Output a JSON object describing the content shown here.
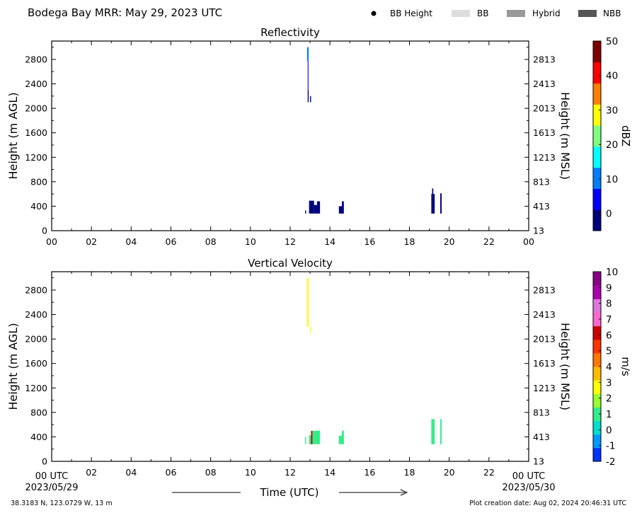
{
  "header": {
    "title": "Bodega Bay MRR:  May 29, 2023 UTC",
    "legend": [
      {
        "label": "BB Height",
        "kind": "dot",
        "color": "#000000"
      },
      {
        "label": "BB",
        "kind": "rect",
        "color": "#dddddd"
      },
      {
        "label": "Hybrid",
        "kind": "rect",
        "color": "#999999"
      },
      {
        "label": "NBB",
        "kind": "rect",
        "color": "#555555"
      }
    ]
  },
  "footer": {
    "location": "38.3183 N, 123.0729 W, 13 m",
    "plot_creation": "Plot creation date: Aug 02, 2024 20:46:31 UTC",
    "xlabel": "Time (UTC)",
    "start_label": "00 UTC",
    "start_date": "2023/05/29",
    "end_label": "00 UTC",
    "end_date": "2023/05/30"
  },
  "chart_data": [
    {
      "type": "heatmap",
      "title": "Reflectivity",
      "ylabel": "Height (m AGL)",
      "ylabel_right": "Height (m MSL)",
      "x_ticks": [
        "00",
        "02",
        "04",
        "06",
        "08",
        "10",
        "12",
        "14",
        "16",
        "18",
        "20",
        "22",
        "00"
      ],
      "xlim": [
        0,
        24
      ],
      "ylim": [
        0,
        3100
      ],
      "y_ticks_left": [
        0,
        400,
        800,
        1200,
        1600,
        2000,
        2400,
        2800
      ],
      "y_ticks_right": [
        13,
        413,
        813,
        1213,
        1613,
        2013,
        2413,
        2813
      ],
      "colorbar": {
        "label": "dBZ",
        "min": -5,
        "max": 50,
        "ticks": [
          0,
          10,
          20,
          30,
          40,
          50
        ],
        "colors": [
          "#00007f",
          "#0000ff",
          "#007fff",
          "#00ffff",
          "#7fff7f",
          "#ffff00",
          "#ff7f00",
          "#ff0000",
          "#7f0000"
        ]
      },
      "cells": [
        {
          "t0": 12.75,
          "t1": 12.8,
          "h0": 280,
          "h1": 330,
          "v": -2
        },
        {
          "t0": 12.85,
          "t1": 12.93,
          "h0": 2770,
          "h1": 3000,
          "v": 8
        },
        {
          "t0": 12.88,
          "t1": 12.92,
          "h0": 2300,
          "h1": 2770,
          "v": 4
        },
        {
          "t0": 12.88,
          "t1": 12.93,
          "h0": 2100,
          "h1": 2300,
          "v": -3
        },
        {
          "t0": 13.0,
          "t1": 13.05,
          "h0": 2100,
          "h1": 2200,
          "v": -2
        },
        {
          "t0": 12.95,
          "t1": 13.2,
          "h0": 280,
          "h1": 490,
          "v": -2
        },
        {
          "t0": 13.2,
          "t1": 13.35,
          "h0": 280,
          "h1": 420,
          "v": -2
        },
        {
          "t0": 13.35,
          "t1": 13.5,
          "h0": 280,
          "h1": 480,
          "v": -1
        },
        {
          "t0": 14.45,
          "t1": 14.65,
          "h0": 280,
          "h1": 400,
          "v": -2
        },
        {
          "t0": 14.6,
          "t1": 14.7,
          "h0": 280,
          "h1": 480,
          "v": -1
        },
        {
          "t0": 19.1,
          "t1": 19.27,
          "h0": 280,
          "h1": 600,
          "v": -1
        },
        {
          "t0": 19.14,
          "t1": 19.2,
          "h0": 600,
          "h1": 690,
          "v": 0
        },
        {
          "t0": 19.55,
          "t1": 19.62,
          "h0": 280,
          "h1": 610,
          "v": -2
        }
      ]
    },
    {
      "type": "heatmap",
      "title": "Vertical Velocity",
      "ylabel": "Height (m AGL)",
      "ylabel_right": "Height (m MSL)",
      "x_ticks": [
        "00",
        "02",
        "04",
        "06",
        "08",
        "10",
        "12",
        "14",
        "16",
        "18",
        "20",
        "22",
        "00"
      ],
      "xlim": [
        0,
        24
      ],
      "ylim": [
        0,
        3100
      ],
      "y_ticks_left": [
        0,
        400,
        800,
        1200,
        1600,
        2000,
        2400,
        2800
      ],
      "y_ticks_right": [
        13,
        413,
        813,
        1213,
        1613,
        2013,
        2413,
        2813
      ],
      "colorbar": {
        "label": "m/s",
        "min": -2,
        "max": 10,
        "ticks": [
          -2,
          -1,
          0,
          1,
          2,
          3,
          4,
          5,
          6,
          7,
          8,
          9,
          10
        ],
        "colors": [
          "#0033ff",
          "#0099ff",
          "#00ddcc",
          "#33ee88",
          "#99ff33",
          "#ffff00",
          "#ffbb00",
          "#ff7700",
          "#ff3300",
          "#cc0000",
          "#ff66cc",
          "#dd77dd",
          "#aa00aa",
          "#880088"
        ]
      },
      "cells": [
        {
          "t0": 12.75,
          "t1": 12.8,
          "h0": 280,
          "h1": 400,
          "v": 1
        },
        {
          "t0": 12.85,
          "t1": 12.93,
          "h0": 2200,
          "h1": 3000,
          "v": 2.5
        },
        {
          "t0": 13.0,
          "t1": 13.05,
          "h0": 2100,
          "h1": 2200,
          "v": 2.5
        },
        {
          "t0": 12.95,
          "t1": 13.05,
          "h0": 280,
          "h1": 430,
          "v": 1
        },
        {
          "t0": 13.05,
          "t1": 13.12,
          "h0": 280,
          "h1": 500,
          "v": 6.3
        },
        {
          "t0": 13.12,
          "t1": 13.5,
          "h0": 280,
          "h1": 500,
          "v": 0.8
        },
        {
          "t0": 14.45,
          "t1": 14.7,
          "h0": 280,
          "h1": 420,
          "v": 0.8
        },
        {
          "t0": 14.6,
          "t1": 14.7,
          "h0": 280,
          "h1": 500,
          "v": 0.8
        },
        {
          "t0": 19.1,
          "t1": 19.27,
          "h0": 280,
          "h1": 690,
          "v": 0.8
        },
        {
          "t0": 19.55,
          "t1": 19.62,
          "h0": 280,
          "h1": 690,
          "v": 0.8
        }
      ]
    }
  ]
}
